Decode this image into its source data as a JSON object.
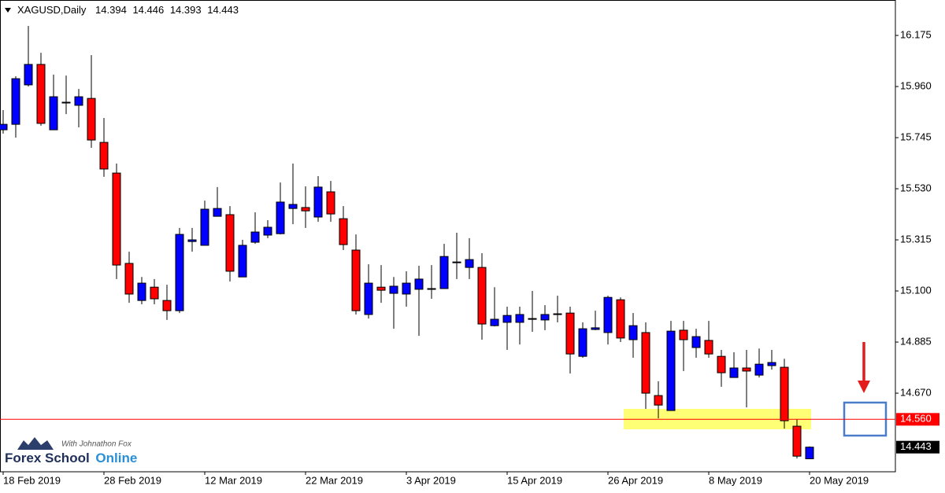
{
  "chart_data": {
    "type": "candlestick",
    "title": "XAGUSD,Daily",
    "categories": [
      "18 Feb 2019",
      null,
      null,
      null,
      null,
      null,
      null,
      null,
      "28 Feb 2019",
      null,
      null,
      null,
      null,
      null,
      null,
      null,
      "12 Mar 2019",
      null,
      null,
      null,
      null,
      null,
      null,
      null,
      "22 Mar 2019",
      null,
      null,
      null,
      null,
      null,
      null,
      null,
      "3 Apr 2019",
      null,
      null,
      null,
      null,
      null,
      null,
      null,
      "15 Apr 2019",
      null,
      null,
      null,
      null,
      null,
      null,
      null,
      "26 Apr 2019",
      null,
      null,
      null,
      null,
      null,
      null,
      null,
      "8 May 2019",
      null,
      null,
      null,
      null,
      null,
      null,
      null,
      "20 May 2019"
    ],
    "open": [
      15.778,
      15.801,
      15.967,
      16.053,
      15.778,
      15.894,
      15.881,
      15.91,
      15.725,
      15.596,
      15.216,
      15.06,
      15.116,
      15.06,
      15.017,
      15.308,
      15.292,
      15.414,
      15.421,
      15.159,
      15.305,
      15.335,
      15.341,
      15.447,
      15.451,
      15.411,
      15.517,
      15.404,
      15.272,
      15.001,
      15.116,
      15.09,
      15.087,
      15.107,
      15.11,
      15.11,
      15.222,
      15.199,
      15.199,
      14.954,
      14.968,
      14.968,
      14.984,
      14.978,
      15.004,
      15.007,
      14.825,
      14.938,
      14.925,
      15.063,
      14.895,
      14.925,
      14.66,
      14.597,
      14.935,
      14.862,
      14.892,
      14.825,
      14.736,
      14.776,
      14.746,
      14.786,
      14.779,
      14.531,
      14.394
    ],
    "high": [
      15.861,
      16.003,
      16.215,
      16.102,
      16.01,
      16.006,
      15.95,
      16.092,
      15.828,
      15.636,
      15.265,
      15.159,
      15.15,
      15.126,
      15.365,
      15.365,
      15.48,
      15.537,
      15.457,
      15.315,
      15.431,
      15.398,
      15.556,
      15.636,
      15.54,
      15.583,
      15.563,
      15.457,
      15.338,
      15.212,
      15.209,
      15.159,
      15.183,
      15.206,
      15.209,
      15.298,
      15.345,
      15.322,
      15.259,
      15.116,
      15.034,
      15.034,
      15.1,
      15.04,
      15.08,
      15.034,
      14.968,
      15.017,
      15.08,
      15.073,
      15.007,
      14.968,
      14.72,
      14.974,
      14.974,
      14.941,
      14.974,
      14.852,
      14.842,
      14.852,
      14.858,
      14.852,
      14.815,
      14.561,
      14.446
    ],
    "low": [
      15.762,
      15.745,
      15.96,
      15.795,
      15.778,
      15.844,
      15.788,
      15.702,
      15.58,
      15.15,
      15.05,
      15.044,
      15.044,
      14.978,
      15.007,
      15.265,
      15.292,
      15.414,
      15.14,
      15.159,
      15.298,
      15.322,
      15.338,
      15.381,
      15.365,
      15.391,
      15.391,
      15.272,
      15.001,
      14.984,
      15.05,
      14.941,
      15.034,
      14.911,
      15.067,
      15.11,
      15.15,
      15.15,
      14.895,
      14.951,
      14.852,
      14.875,
      14.928,
      14.935,
      14.968,
      14.753,
      14.819,
      14.935,
      14.875,
      14.885,
      14.819,
      14.604,
      14.564,
      14.597,
      14.763,
      14.819,
      14.819,
      14.697,
      14.736,
      14.61,
      14.736,
      14.769,
      14.521,
      14.395,
      14.393
    ],
    "close": [
      15.801,
      15.993,
      16.053,
      15.805,
      15.917,
      15.891,
      15.917,
      15.735,
      15.613,
      15.209,
      15.087,
      15.133,
      15.067,
      15.017,
      15.338,
      15.315,
      15.444,
      15.447,
      15.183,
      15.292,
      15.348,
      15.368,
      15.474,
      15.464,
      15.437,
      15.537,
      15.424,
      15.295,
      15.017,
      15.133,
      15.103,
      15.12,
      15.133,
      15.15,
      15.107,
      15.245,
      15.219,
      15.232,
      14.961,
      14.981,
      14.997,
      15.001,
      14.981,
      15.001,
      15.001,
      14.835,
      14.941,
      14.945,
      15.073,
      14.902,
      14.954,
      14.67,
      14.62,
      14.931,
      14.895,
      14.908,
      14.835,
      14.756,
      14.776,
      14.763,
      14.792,
      14.799,
      14.554,
      14.405,
      14.443
    ],
    "up_color": "#0000ff",
    "down_color": "#ff0000",
    "ylim": [
      14.346,
      16.324
    ],
    "yticks": [
      16.175,
      {
        "value": 15.96,
        "label": "15.960"
      },
      15.745,
      {
        "value": 15.53,
        "label": "15.530"
      },
      15.315,
      {
        "value": 15.1,
        "label": "15.100"
      },
      14.885,
      {
        "value": 14.67,
        "label": "14.670"
      }
    ],
    "price_line": {
      "value": 14.56,
      "label": "14.560",
      "color": "#ff0000"
    }
  },
  "logo": {
    "tagline": "With Johnathon Fox",
    "brand": "Forex School",
    "brand_accent": "Online"
  }
}
